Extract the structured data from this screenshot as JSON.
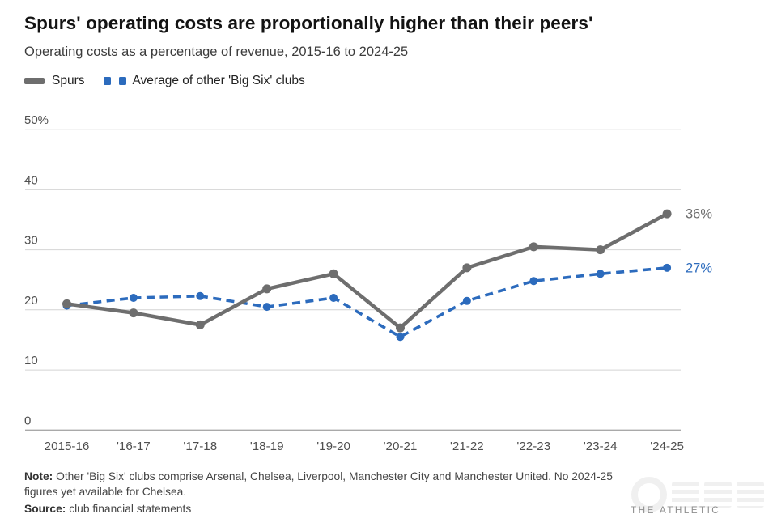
{
  "header": {
    "title": "Spurs' operating costs are proportionally higher than their peers'",
    "subtitle": "Operating costs as a percentage of revenue, 2015-16 to 2024-25"
  },
  "legend": [
    {
      "label": "Spurs",
      "color": "#6e6e6e",
      "style": "solid"
    },
    {
      "label": "Average of other 'Big Six' clubs",
      "color": "#2c6bbd",
      "style": "dashed"
    }
  ],
  "colors": {
    "spurs_gray": "#6e6e6e",
    "average_blue": "#2c6bbd",
    "gridline": "#d4d4d4",
    "zero_line": "#a9a9a9",
    "axis_text": "#4f4f4f"
  },
  "chart_data": {
    "type": "line",
    "title": "Spurs' operating costs are proportionally higher than their peers'",
    "subtitle": "Operating costs as a percentage of revenue, 2015-16 to 2024-25",
    "categories": [
      "2015-16",
      "'16-17",
      "'17-18",
      "'18-19",
      "'19-20",
      "'20-21",
      "'21-22",
      "'22-23",
      "'23-24",
      "'24-25"
    ],
    "series": [
      {
        "name": "Spurs",
        "color": "#6e6e6e",
        "dash": false,
        "end_label": "36%",
        "values": [
          21,
          19.5,
          17.5,
          23.5,
          26,
          17,
          27,
          30.5,
          30,
          36
        ]
      },
      {
        "name": "Average of other 'Big Six' clubs",
        "color": "#2c6bbd",
        "dash": true,
        "end_label": "27%",
        "values": [
          20.7,
          22,
          22.3,
          20.5,
          22,
          15.5,
          21.5,
          24.8,
          26,
          27
        ]
      }
    ],
    "y_ticks": [
      {
        "value": 50,
        "label": "50%"
      },
      {
        "value": 40,
        "label": "40"
      },
      {
        "value": 30,
        "label": "30"
      },
      {
        "value": 20,
        "label": "20"
      },
      {
        "value": 10,
        "label": "10"
      },
      {
        "value": 0,
        "label": "0"
      }
    ],
    "ylim": [
      0,
      50
    ],
    "grid": true,
    "legend_position": "top-left"
  },
  "footer": {
    "note_label": "Note:",
    "note_text": " Other 'Big Six' clubs comprise Arsenal, Chelsea, Liverpool, Manchester City and Manchester United. No 2024-25 figures yet available for Chelsea.",
    "source_label": "Source:",
    "source_text": " club financial statements",
    "brand": "THE ATHLETIC"
  }
}
